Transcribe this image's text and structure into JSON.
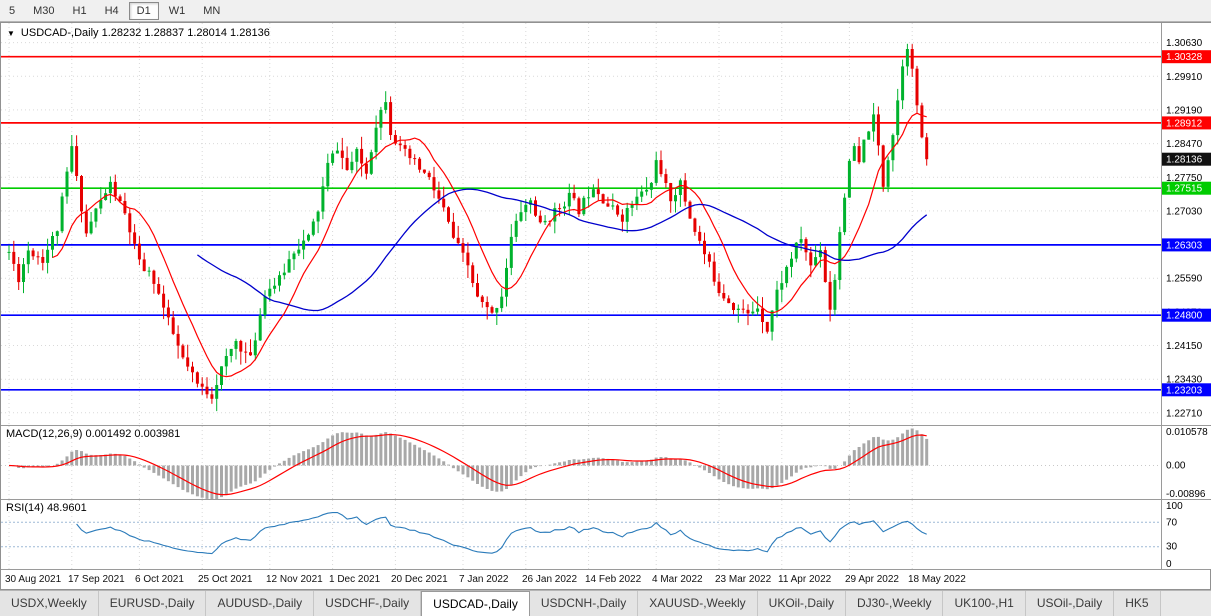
{
  "toolbar": {
    "periods": [
      {
        "label": "5",
        "active": false
      },
      {
        "label": "M30",
        "active": false
      },
      {
        "label": "H1",
        "active": false
      },
      {
        "label": "H4",
        "active": false
      },
      {
        "label": "D1",
        "active": true
      },
      {
        "label": "W1",
        "active": false
      },
      {
        "label": "MN",
        "active": false
      }
    ]
  },
  "chart_data": {
    "type": "candlestick",
    "symbol": "USDCAD-",
    "timeframe": "Daily",
    "collapse_icon": "▼",
    "header_text": "USDCAD-,Daily  1.28232 1.28837 1.28014 1.28136",
    "current_ohlc": {
      "open": 1.28232,
      "high": 1.28837,
      "low": 1.28014,
      "close": 1.28136
    },
    "y_axis": {
      "min": 1.2245,
      "max": 1.3105,
      "ticks": [
        1.3063,
        1.2991,
        1.2919,
        1.2847,
        1.2775,
        1.2703,
        1.2631,
        1.2559,
        1.2487,
        1.2415,
        1.2343,
        1.2271
      ]
    },
    "x_axis": {
      "dates": [
        "30 Aug 2021",
        "17 Sep 2021",
        "6 Oct 2021",
        "25 Oct 2021",
        "12 Nov 2021",
        "1 Dec 2021",
        "20 Dec 2021",
        "7 Jan 2022",
        "26 Jan 2022",
        "14 Feb 2022",
        "4 Mar 2022",
        "23 Mar 2022",
        "11 Apr 2022",
        "29 Apr 2022",
        "18 May 2022"
      ],
      "tick_indices": [
        0,
        13,
        27,
        40,
        54,
        67,
        80,
        94,
        107,
        120,
        134,
        147,
        160,
        174,
        187
      ]
    },
    "levels": [
      {
        "price": 1.30328,
        "color": "#ff0000"
      },
      {
        "price": 1.28912,
        "color": "#ff0000"
      },
      {
        "price": 1.27515,
        "color": "#00cc00"
      },
      {
        "price": 1.26303,
        "color": "#0000ff"
      },
      {
        "price": 1.248,
        "color": "#0000ff"
      },
      {
        "price": 1.23203,
        "color": "#0000ff"
      }
    ],
    "current_price_marker": {
      "price": 1.28136,
      "color": "#111111"
    },
    "candles": {
      "count": 191,
      "noise": 0.0011,
      "wick": 0.0028,
      "seed": 11,
      "up_color": "#00b22d",
      "down_color": "#e60000",
      "anchors": [
        [
          0,
          1.2615
        ],
        [
          2,
          1.256
        ],
        [
          4,
          1.262
        ],
        [
          7,
          1.26
        ],
        [
          10,
          1.2665
        ],
        [
          13,
          1.284
        ],
        [
          14,
          1.277
        ],
        [
          16,
          1.2655
        ],
        [
          18,
          1.2705
        ],
        [
          21,
          1.276
        ],
        [
          24,
          1.2695
        ],
        [
          27,
          1.259
        ],
        [
          30,
          1.2555
        ],
        [
          33,
          1.2465
        ],
        [
          36,
          1.2385
        ],
        [
          39,
          1.233
        ],
        [
          42,
          1.231
        ],
        [
          44,
          1.2365
        ],
        [
          47,
          1.2425
        ],
        [
          50,
          1.2385
        ],
        [
          53,
          1.253
        ],
        [
          56,
          1.2555
        ],
        [
          59,
          1.262
        ],
        [
          62,
          1.2645
        ],
        [
          64,
          1.2705
        ],
        [
          66,
          1.28
        ],
        [
          68,
          1.284
        ],
        [
          70,
          1.279
        ],
        [
          72,
          1.2825
        ],
        [
          74,
          1.2785
        ],
        [
          76,
          1.289
        ],
        [
          78,
          1.2945
        ],
        [
          79,
          1.2875
        ],
        [
          81,
          1.2835
        ],
        [
          84,
          1.2805
        ],
        [
          87,
          1.277
        ],
        [
          90,
          1.2705
        ],
        [
          92,
          1.2645
        ],
        [
          95,
          1.2585
        ],
        [
          97,
          1.2515
        ],
        [
          100,
          1.248
        ],
        [
          102,
          1.2525
        ],
        [
          104,
          1.2645
        ],
        [
          106,
          1.2705
        ],
        [
          108,
          1.2725
        ],
        [
          110,
          1.267
        ],
        [
          113,
          1.27
        ],
        [
          116,
          1.2735
        ],
        [
          118,
          1.2705
        ],
        [
          121,
          1.276
        ],
        [
          124,
          1.2715
        ],
        [
          127,
          1.269
        ],
        [
          130,
          1.273
        ],
        [
          133,
          1.276
        ],
        [
          134,
          1.282
        ],
        [
          135,
          1.2775
        ],
        [
          137,
          1.273
        ],
        [
          139,
          1.276
        ],
        [
          141,
          1.269
        ],
        [
          144,
          1.261
        ],
        [
          147,
          1.2535
        ],
        [
          150,
          1.25
        ],
        [
          153,
          1.248
        ],
        [
          155,
          1.25
        ],
        [
          157,
          1.245
        ],
        [
          159,
          1.253
        ],
        [
          162,
          1.2605
        ],
        [
          164,
          1.2645
        ],
        [
          166,
          1.2585
        ],
        [
          168,
          1.2625
        ],
        [
          169,
          1.2555
        ],
        [
          170,
          1.2495
        ],
        [
          171,
          1.256
        ],
        [
          172,
          1.266
        ],
        [
          173,
          1.274
        ],
        [
          174,
          1.28
        ],
        [
          175,
          1.284
        ],
        [
          176,
          1.28
        ],
        [
          177,
          1.285
        ],
        [
          178,
          1.288
        ],
        [
          179,
          1.29
        ],
        [
          180,
          1.284
        ],
        [
          181,
          1.276
        ],
        [
          182,
          1.282
        ],
        [
          183,
          1.287
        ],
        [
          184,
          1.294
        ],
        [
          185,
          1.302
        ],
        [
          186,
          1.306
        ],
        [
          187,
          1.3
        ],
        [
          188,
          1.293
        ],
        [
          189,
          1.285
        ],
        [
          190,
          1.28136
        ]
      ]
    },
    "moving_averages": [
      {
        "period": 10,
        "color": "#ff0000",
        "width": 1.2
      },
      {
        "period": 40,
        "color": "#0000cc",
        "width": 1.3
      }
    ],
    "macd": {
      "label": "MACD(12,26,9) 0.001492 0.003981",
      "fast": 12,
      "slow": 26,
      "signal": 9,
      "value": 0.001492,
      "signal_value": 0.003981,
      "axis_max": 0.010578,
      "axis_min": -0.00896,
      "axis_labels": [
        "0.010578",
        "0.00",
        "-0.00896"
      ],
      "axis_values": [
        0.010578,
        0,
        -0.00896
      ],
      "hist_color": "#a8a8a8",
      "signal_color": "#ff0000"
    },
    "rsi": {
      "label": "RSI(14) 48.9601",
      "period": 14,
      "value": 48.9601,
      "levels": [
        70,
        30
      ],
      "scale_marks": [
        100,
        70,
        30,
        0
      ],
      "axis_labels": [
        "100",
        "70",
        "30",
        "0"
      ],
      "line_color": "#2b7bba",
      "level_color": "#9db9d6"
    },
    "grid_color": "#d9d9d9"
  },
  "tabs": {
    "items": [
      {
        "label": "USDX,Weekly",
        "active": false
      },
      {
        "label": "EURUSD-,Daily",
        "active": false
      },
      {
        "label": "AUDUSD-,Daily",
        "active": false
      },
      {
        "label": "USDCHF-,Daily",
        "active": false
      },
      {
        "label": "USDCAD-,Daily",
        "active": true
      },
      {
        "label": "USDCNH-,Daily",
        "active": false
      },
      {
        "label": "XAUUSD-,Weekly",
        "active": false
      },
      {
        "label": "UKOil-,Daily",
        "active": false
      },
      {
        "label": "DJ30-,Weekly",
        "active": false
      },
      {
        "label": "UK100-,H1",
        "active": false
      },
      {
        "label": "USOil-,Daily",
        "active": false
      },
      {
        "label": "HK5",
        "active": false
      }
    ]
  }
}
